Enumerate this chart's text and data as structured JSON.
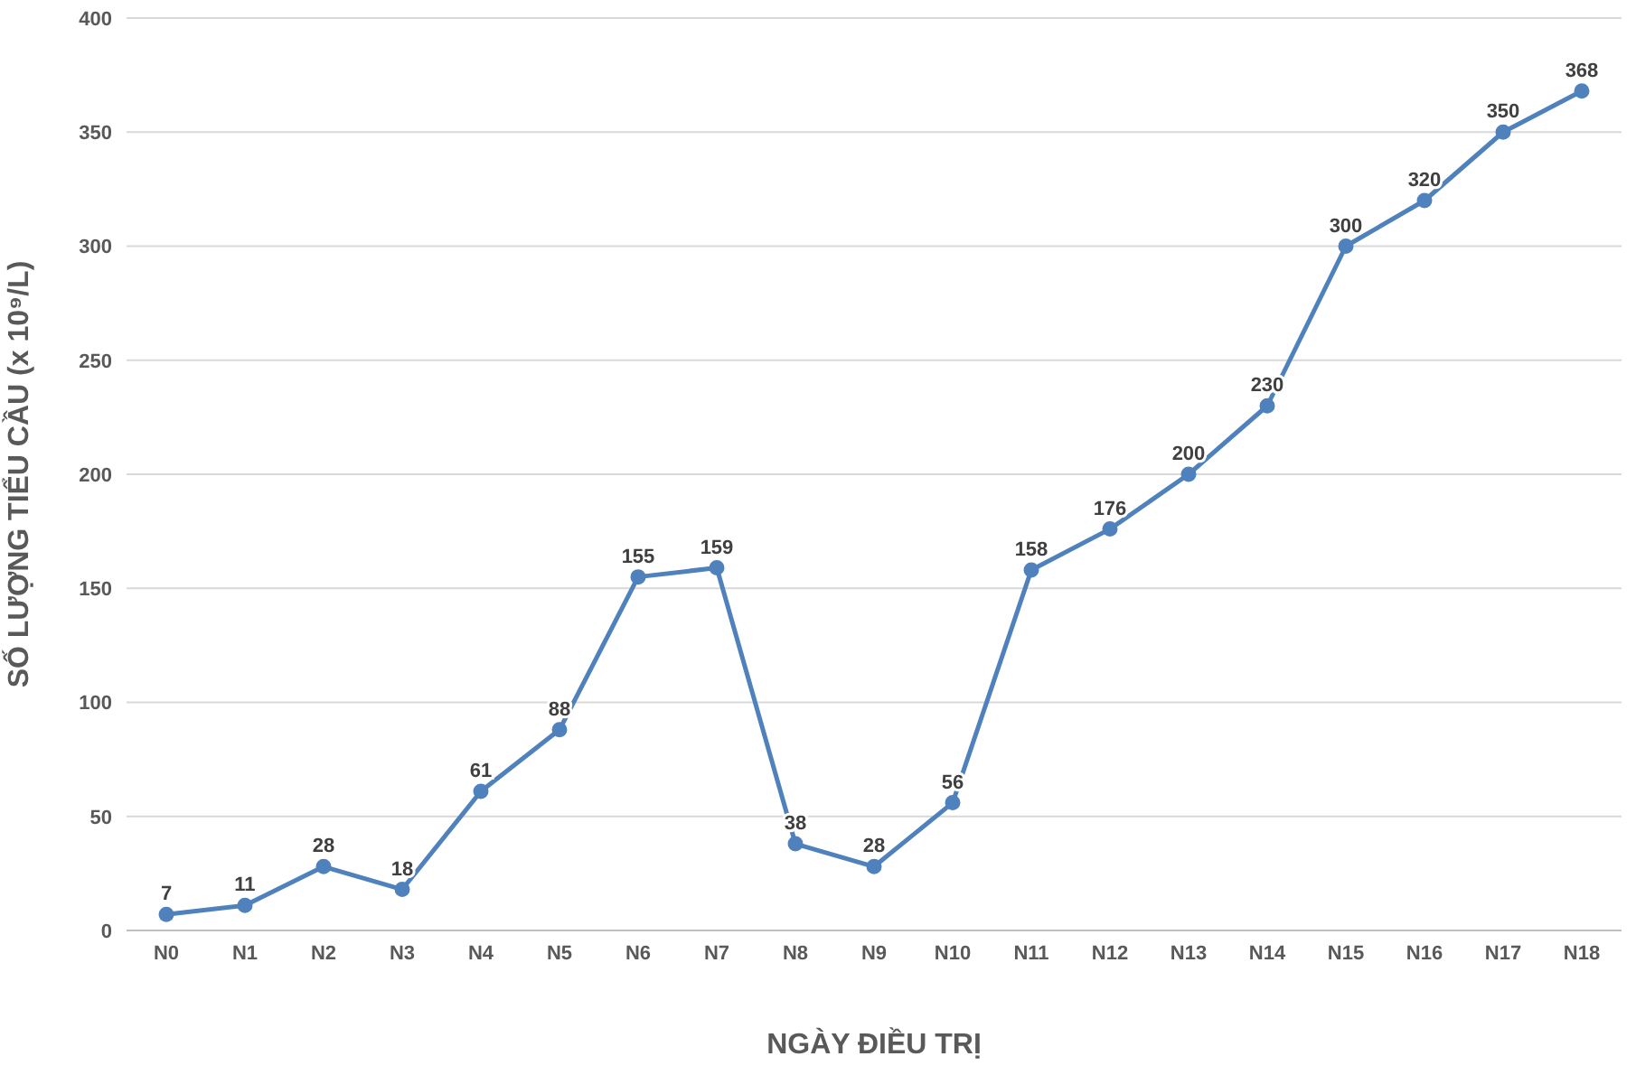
{
  "chart_data": {
    "type": "line",
    "xlabel": "NGÀY ĐIỀU TRỊ",
    "ylabel": "SỐ LƯỢNG TIỂU CẦU (x 10⁹/L)",
    "categories": [
      "N0",
      "N1",
      "N2",
      "N3",
      "N4",
      "N5",
      "N6",
      "N7",
      "N8",
      "N9",
      "N10",
      "N11",
      "N12",
      "N13",
      "N14",
      "N15",
      "N16",
      "N17",
      "N18"
    ],
    "series": [
      {
        "color": "#4f81bd",
        "values": [
          7,
          11,
          28,
          18,
          61,
          88,
          155,
          159,
          38,
          28,
          56,
          158,
          176,
          200,
          230,
          300,
          320,
          350,
          368
        ]
      }
    ],
    "ylim": [
      0,
      400
    ],
    "yticks": [
      0,
      50,
      100,
      150,
      200,
      250,
      300,
      350,
      400
    ],
    "grid": "y",
    "marker": "circle",
    "data_labels": true
  }
}
